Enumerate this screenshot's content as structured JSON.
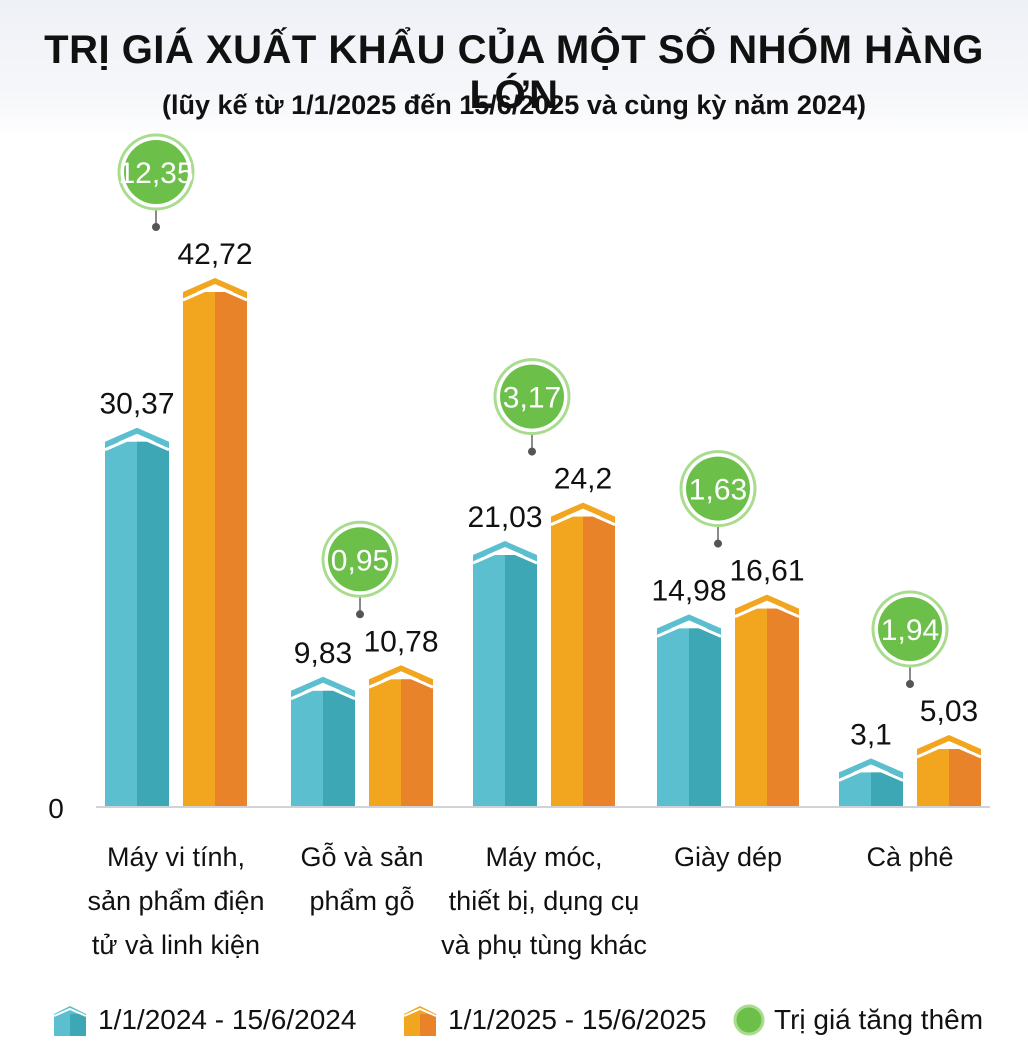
{
  "header": {
    "title": "TRỊ GIÁ XUẤT KHẨU CỦA MỘT SỐ NHÓM HÀNG LỚN",
    "subtitle": "(lũy kế từ 1/1/2025 đến 15/6/2025 và cùng kỳ năm 2024)"
  },
  "chart_data": {
    "type": "bar",
    "title": "TRỊ GIÁ XUẤT KHẨU CỦA MỘT SỐ NHÓM HÀNG LỚN",
    "subtitle": "(lũy kế từ 1/1/2025 đến 15/6/2025 và cùng kỳ năm 2024)",
    "categories": [
      [
        "Máy vi tính,",
        "sản  phẩm điện",
        "tử và linh kiện"
      ],
      [
        "Gỗ và sản",
        "phẩm gỗ"
      ],
      [
        "Máy móc,",
        "thiết bị, dụng cụ",
        "và phụ tùng khác"
      ],
      [
        "Giày dép"
      ],
      [
        "Cà phê"
      ]
    ],
    "series": [
      {
        "name": "1/1/2024 - 15/6/2024",
        "values": [
          30.37,
          9.83,
          21.03,
          14.98,
          3.1
        ],
        "labels": [
          "30,37",
          "9,83",
          "21,03",
          "14,98",
          "3,1"
        ],
        "color": "#5bbfcf",
        "color_dark": "#3ea7b5"
      },
      {
        "name": "1/1/2025 - 15/6/2025",
        "values": [
          42.72,
          10.78,
          24.2,
          16.61,
          5.03
        ],
        "labels": [
          "42,72",
          "10,78",
          "24,2",
          "16,61",
          "5,03"
        ],
        "color": "#f2a51e",
        "color_dark": "#e8832a"
      }
    ],
    "increase": {
      "name": "Trị giá tăng thêm",
      "values": [
        12.35,
        0.95,
        3.17,
        1.63,
        1.94
      ],
      "labels": [
        "12,35",
        "0,95",
        "3,17",
        "1,63",
        "1,94"
      ],
      "color": "#6cc04a"
    },
    "y_zero_label": "0",
    "ylim": [
      0,
      45
    ],
    "grid": false,
    "legend_position": "bottom"
  }
}
